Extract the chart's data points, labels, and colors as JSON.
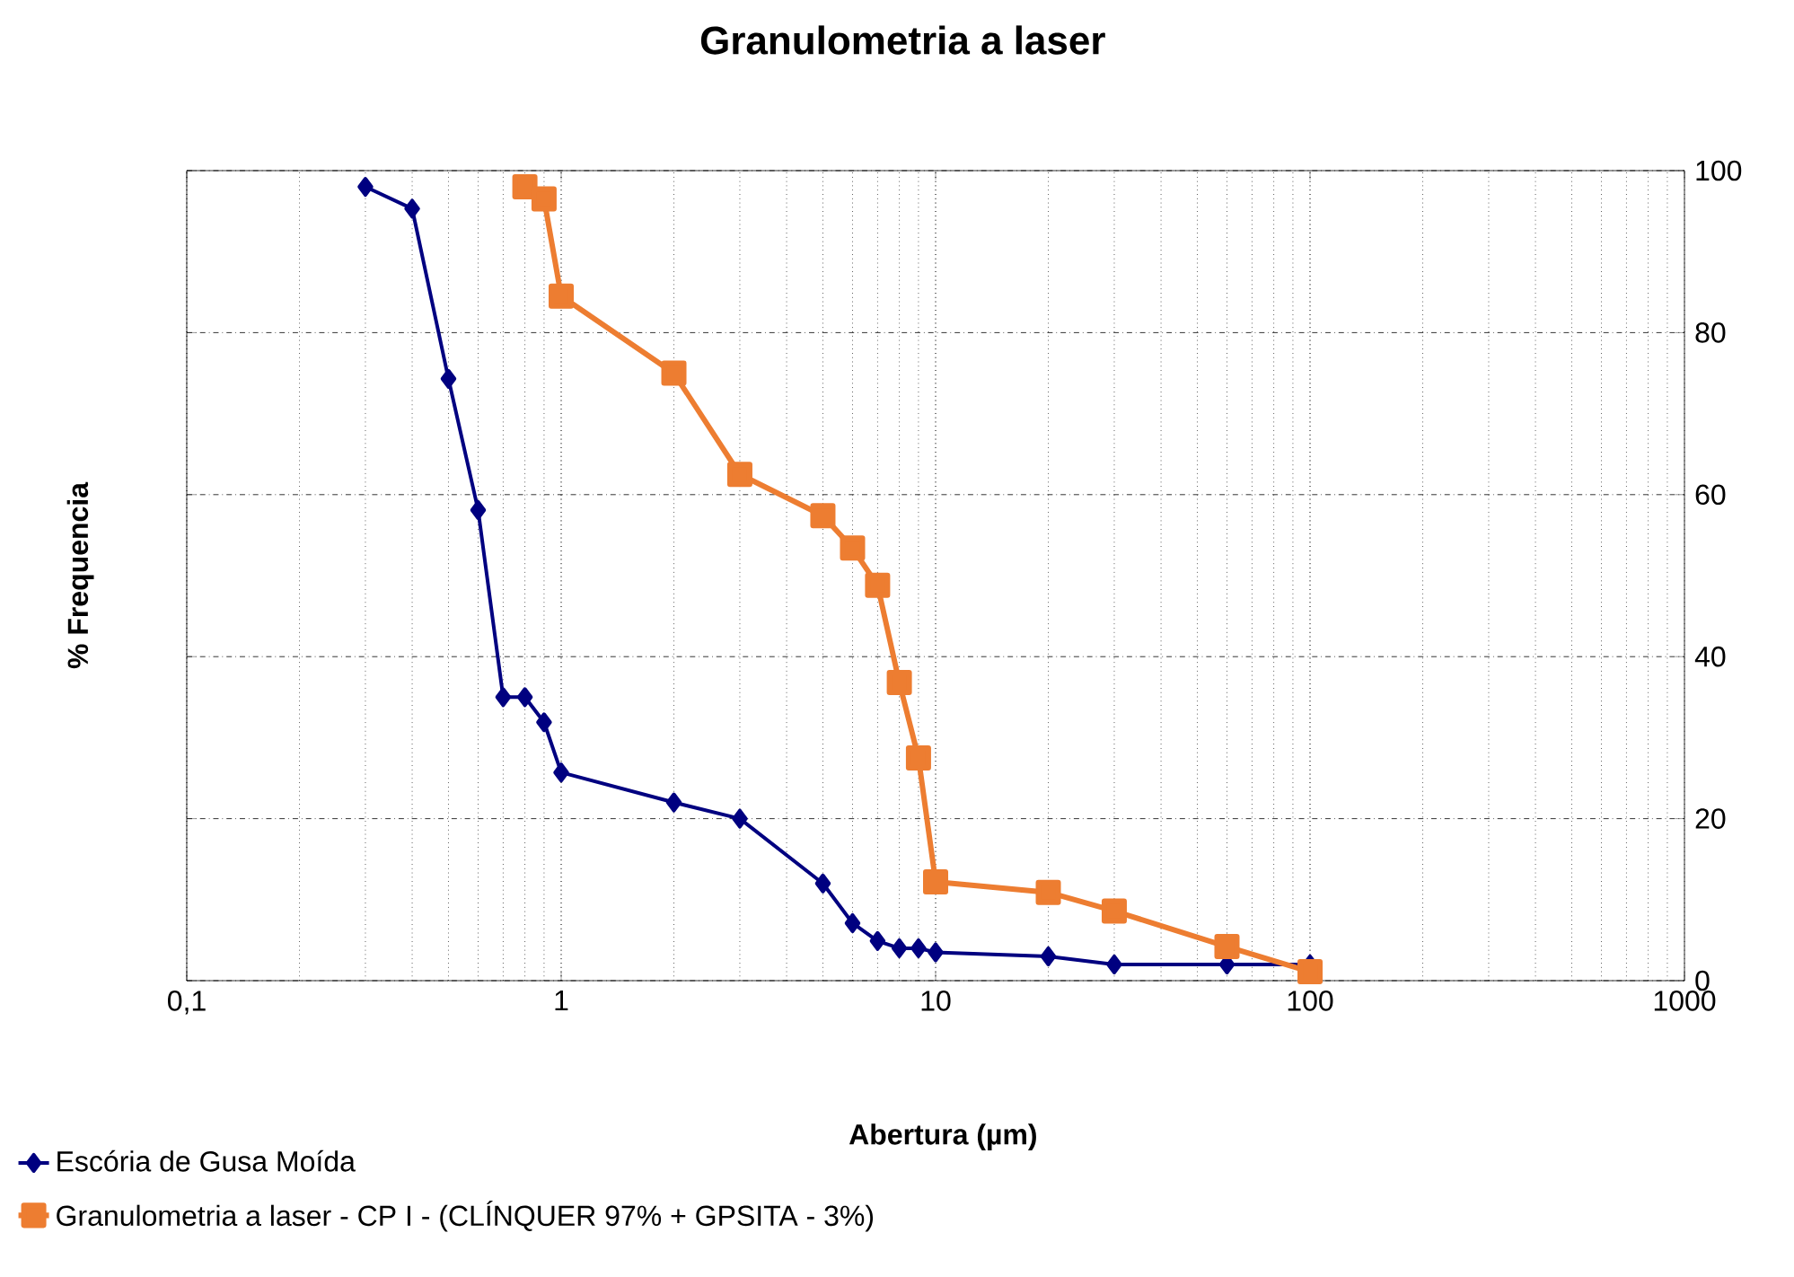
{
  "chart_data": {
    "type": "line",
    "title": "Granulometria a laser",
    "xlabel": "Abertura (µm)",
    "ylabel": "% Frequencia",
    "log": "x",
    "xlim": [
      0.1,
      1000
    ],
    "xticks": [
      {
        "value": 0.1,
        "label": "0,1"
      },
      1,
      10,
      100,
      1000
    ],
    "ylim": [
      0,
      100
    ],
    "yticks": [
      0,
      20,
      40,
      60,
      80,
      100
    ],
    "grid": true,
    "legend": "bottom left",
    "series": [
      {
        "name": "Escória de Gusa Moída",
        "color": "#000080",
        "marker": "diamond",
        "x": [
          0.3,
          0.4,
          0.5,
          0.6,
          0.7,
          0.8,
          0.9,
          1,
          2,
          3,
          5,
          6,
          7,
          8,
          9,
          10,
          20,
          30,
          60,
          100
        ],
        "values": [
          98,
          95.3,
          74.3,
          58.1,
          35,
          35,
          31.9,
          25.7,
          22,
          20,
          12,
          7.1,
          4.9,
          4,
          4,
          3.5,
          3,
          2,
          2,
          2
        ]
      },
      {
        "name": "Granulometria a laser - CP I - (CLÍNQUER 97% + GPSITA - 3%)",
        "color": "#ED7D31",
        "marker": "square",
        "x": [
          0.8,
          0.9,
          1,
          2,
          3,
          5,
          6,
          7,
          8,
          9,
          10,
          20,
          30,
          60,
          100
        ],
        "values": [
          98,
          96.5,
          84.5,
          75,
          62.5,
          57.4,
          53.4,
          48.8,
          36.8,
          27.5,
          12.2,
          10.9,
          8.6,
          4.2,
          1.1
        ]
      }
    ]
  }
}
